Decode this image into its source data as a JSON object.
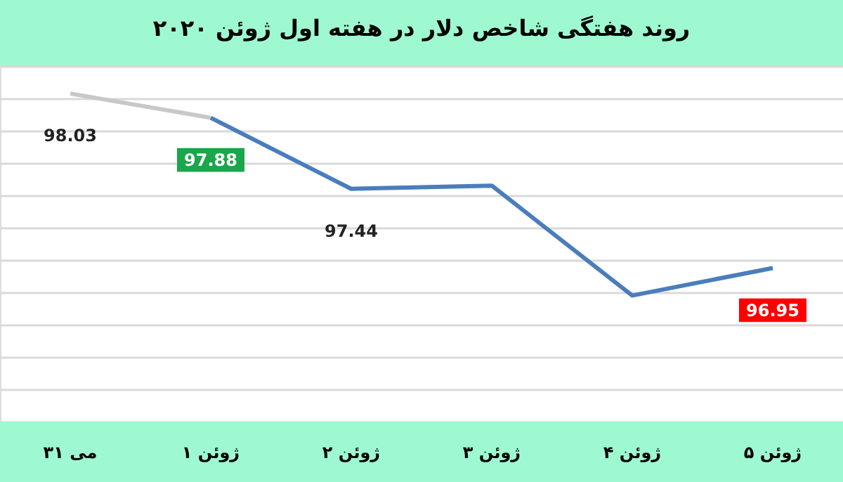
{
  "chart_data": {
    "type": "line",
    "title": "روند هفتگی شاخص دلار در هفته اول ژوئن ۲۰۲۰",
    "categories": [
      "۳۱ می",
      "۱ ژوئن",
      "۲ ژوئن",
      "۳ ژوئن",
      "۴ ژوئن",
      "۵ ژوئن"
    ],
    "series": [
      {
        "color": "#c8c8c8",
        "values": [
          98.03,
          97.88,
          null,
          null,
          null,
          null
        ],
        "value_labels": [
          "98.03",
          null,
          null,
          null,
          null,
          null
        ]
      },
      {
        "color": "#4a7ebb",
        "values": [
          null,
          97.88,
          97.44,
          97.46,
          96.78,
          96.95
        ],
        "value_labels": [
          null,
          "97.88",
          "97.44",
          null,
          null,
          "96.95"
        ]
      }
    ],
    "ylim": [
      96.0,
      98.2
    ],
    "grid": "y",
    "tick_labels": "x",
    "marker": "none",
    "line_style": "solid"
  }
}
